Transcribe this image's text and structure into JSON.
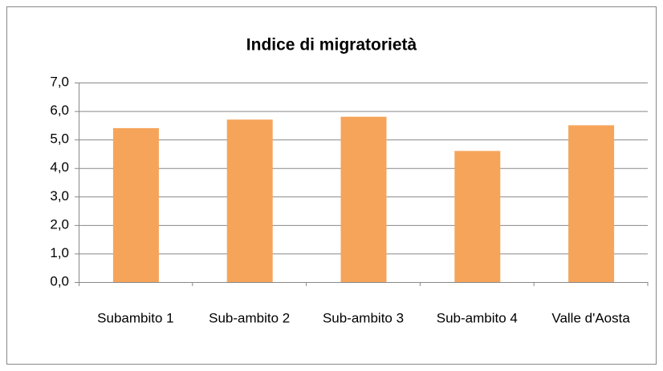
{
  "chart_data": {
    "type": "bar",
    "title": "Indice di migratorietà",
    "categories": [
      "Subambito 1",
      "Sub-ambito 2",
      "Sub-ambito 3",
      "Sub-ambito 4",
      "Valle d'Aosta"
    ],
    "values": [
      5.4,
      5.7,
      5.8,
      4.6,
      5.5
    ],
    "color": "#f6a45a",
    "ylim": [
      0,
      7
    ],
    "yticks": [
      {
        "value": 0,
        "label": "0,0"
      },
      {
        "value": 1,
        "label": "1,0"
      },
      {
        "value": 2,
        "label": "2,0"
      },
      {
        "value": 3,
        "label": "3,0"
      },
      {
        "value": 4,
        "label": "4,0"
      },
      {
        "value": 5,
        "label": "5,0"
      },
      {
        "value": 6,
        "label": "6,0"
      },
      {
        "value": 7,
        "label": "7,0"
      }
    ],
    "grid": true
  }
}
